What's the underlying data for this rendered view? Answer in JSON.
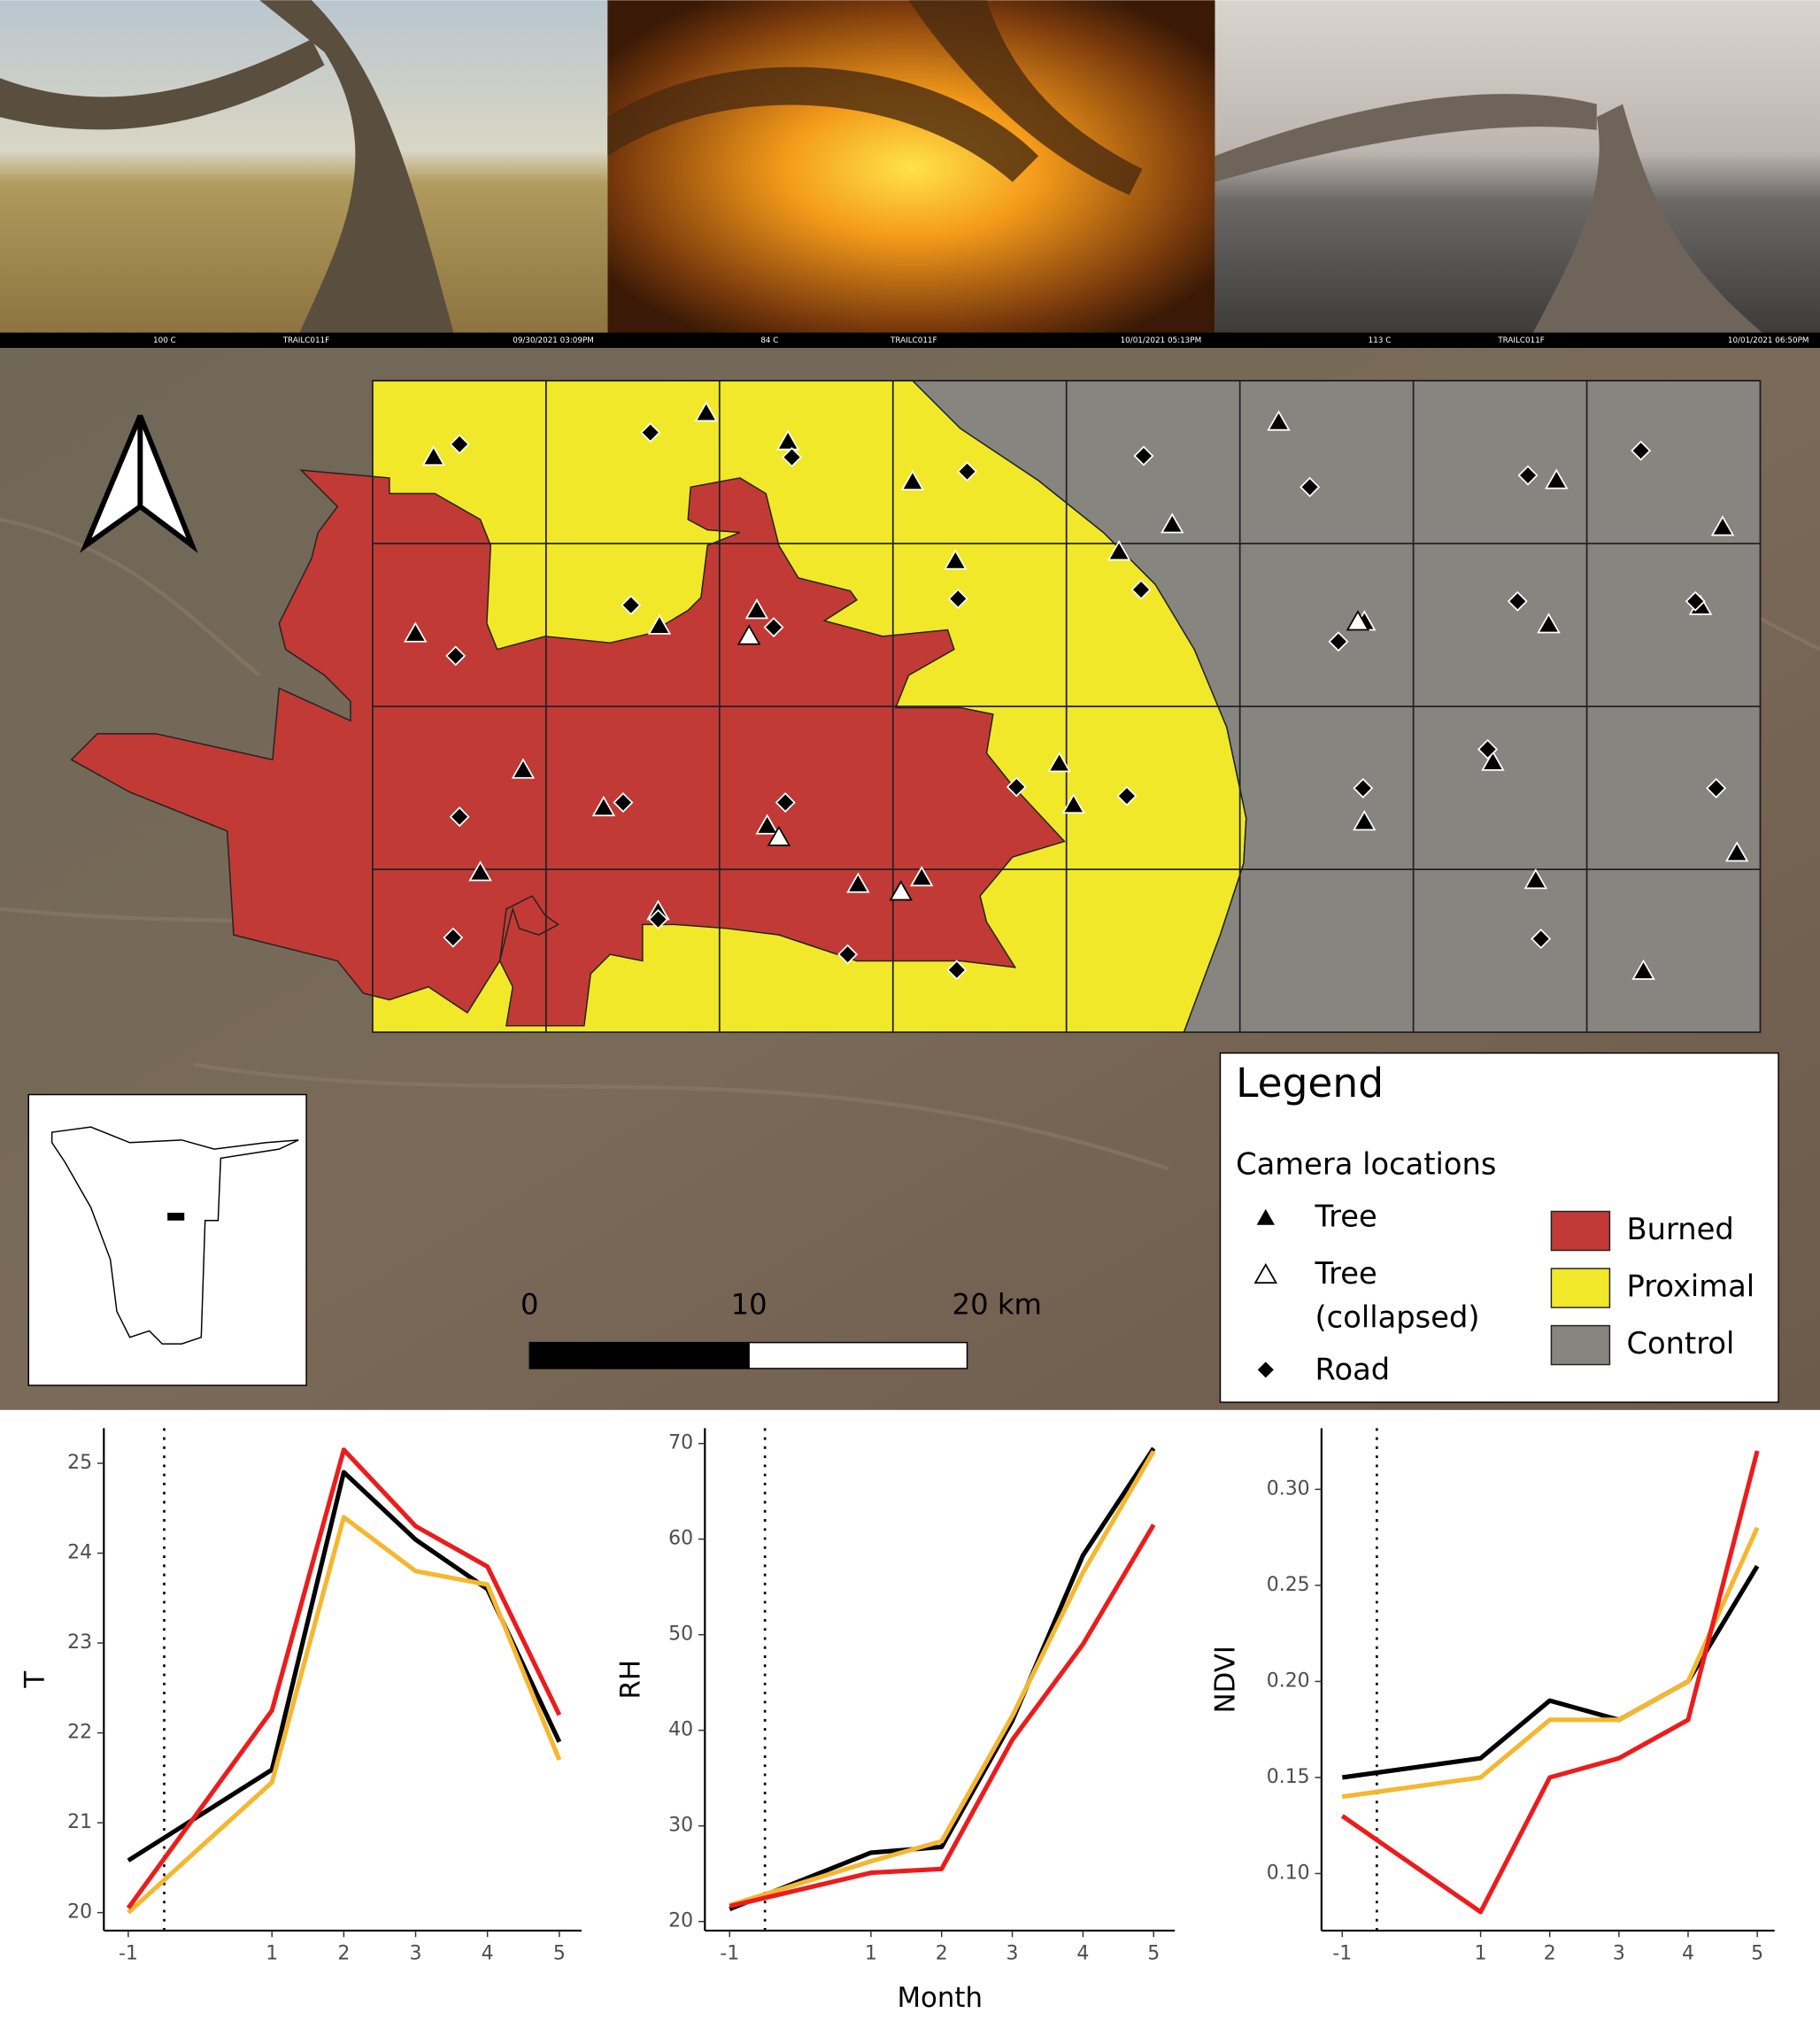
{
  "photos": [
    {
      "temperature": "100 C",
      "camera": "TRAILC011F",
      "timestamp": "09/30/2021 03:09PM"
    },
    {
      "temperature": "84 C",
      "camera": "TRAILC011F",
      "timestamp": "10/01/2021 05:13PM"
    },
    {
      "temperature": "113 C",
      "camera": "TRAILC011F",
      "timestamp": "10/01/2021 06:50PM"
    }
  ],
  "map": {
    "legend": {
      "title": "Legend",
      "subtitle": "Camera locations",
      "cameras": [
        {
          "lines": [
            "Tree"
          ]
        },
        {
          "lines": [
            "Tree",
            "(collapsed)"
          ]
        },
        {
          "lines": [
            "Road"
          ]
        }
      ],
      "zones": [
        {
          "label": "Burned",
          "color": "#c13a35"
        },
        {
          "label": "Proximal",
          "color": "#f1e82a"
        },
        {
          "label": "Control",
          "color": "#878580"
        }
      ]
    },
    "scale_bar": {
      "labels": [
        "0",
        "10",
        "20 km"
      ]
    }
  },
  "chart_data": [
    {
      "type": "line",
      "y_label": "T",
      "x": [
        -1,
        1,
        2,
        3,
        4,
        5
      ],
      "xlim": [
        -1.34,
        5.31
      ],
      "xticks": [
        -1,
        1,
        2,
        3,
        4,
        5
      ],
      "ylim": [
        19.8,
        25.39
      ],
      "yticks": [
        20,
        21,
        22,
        23,
        24,
        25
      ],
      "vline": -0.5,
      "series": [
        {
          "color": "#000000",
          "values": [
            20.58,
            21.59,
            24.9,
            24.15,
            23.6,
            21.9
          ]
        },
        {
          "color": "#f5b731",
          "values": [
            20.0,
            21.45,
            24.4,
            23.8,
            23.65,
            21.7
          ]
        },
        {
          "color": "#ec1c1c",
          "values": [
            20.05,
            22.25,
            25.15,
            24.3,
            23.85,
            22.2
          ]
        }
      ]
    },
    {
      "type": "line",
      "y_label": "RH",
      "x_label": "Month",
      "x": [
        -1,
        1,
        2,
        3,
        4,
        5
      ],
      "xlim": [
        -1.35,
        5.3
      ],
      "xticks": [
        -1,
        1,
        2,
        3,
        4,
        5
      ],
      "ylim": [
        19.05,
        71.6
      ],
      "yticks": [
        20,
        30,
        40,
        50,
        60,
        70
      ],
      "vline": -0.5,
      "series": [
        {
          "color": "#000000",
          "values": [
            21.3,
            27.2,
            27.8,
            41,
            58.3,
            69.5
          ]
        },
        {
          "color": "#f5b731",
          "values": [
            21.7,
            26.3,
            28.4,
            41.5,
            56.5,
            69.2
          ]
        },
        {
          "color": "#ec1c1c",
          "values": [
            21.6,
            25.1,
            25.5,
            39,
            49,
            61.5
          ]
        }
      ]
    },
    {
      "type": "line",
      "y_label": "NDVI",
      "x": [
        -1,
        1,
        2,
        3,
        4,
        5
      ],
      "xlim": [
        -1.3,
        5.25
      ],
      "xticks": [
        -1,
        1,
        2,
        3,
        4,
        5
      ],
      "ylim": [
        0.0703,
        0.3318
      ],
      "yticks": [
        {
          "value": 0.1,
          "label": "0.10"
        },
        {
          "value": 0.15,
          "label": "0.15"
        },
        {
          "value": 0.2,
          "label": "0.20"
        },
        {
          "value": 0.25,
          "label": "0.25"
        },
        {
          "value": 0.3,
          "label": "0.30"
        }
      ],
      "vline": -0.5,
      "series": [
        {
          "color": "#000000",
          "values": [
            0.15,
            0.16,
            0.19,
            0.18,
            0.2,
            0.26
          ]
        },
        {
          "color": "#f5b731",
          "values": [
            0.14,
            0.15,
            0.18,
            0.18,
            0.2,
            0.28
          ]
        },
        {
          "color": "#ec1c1c",
          "values": [
            0.13,
            0.08,
            0.15,
            0.16,
            0.18,
            0.32
          ]
        }
      ]
    }
  ]
}
